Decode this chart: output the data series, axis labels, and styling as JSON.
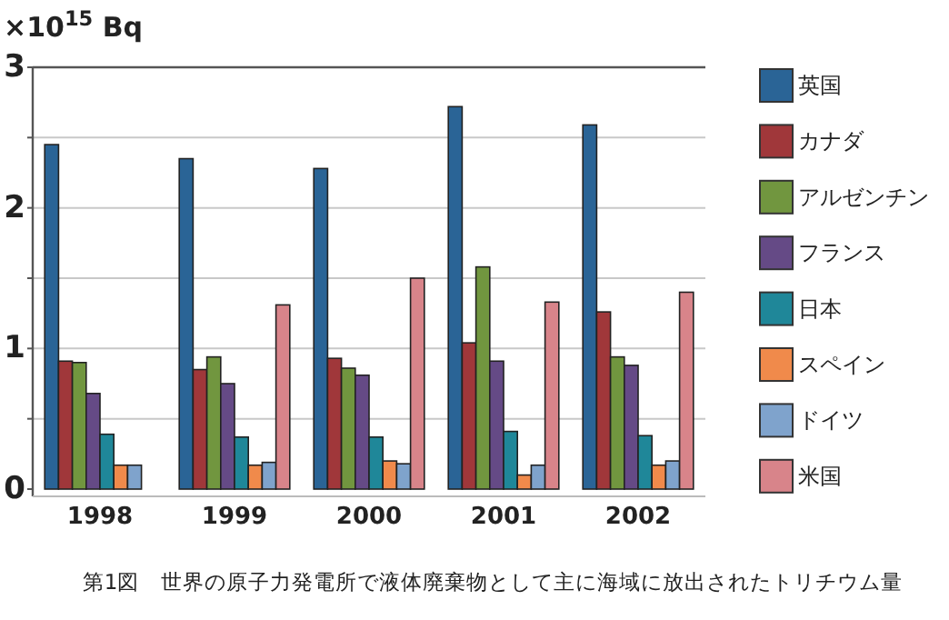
{
  "chart_data": {
    "type": "bar",
    "ylabel": "×10$^{15}$ Bq",
    "annotations": [
      "第1図　世界の原子力発電所で液体廃棄物として主に海域に放出されたトリチウム量"
    ],
    "categories": [
      "1998",
      "1999",
      "2000",
      "2001",
      "2002"
    ],
    "ylim": [
      0,
      3
    ],
    "yticks": [
      0,
      {
        "value": 0.5,
        "label": null
      },
      1,
      {
        "value": 1.5,
        "label": null
      },
      2,
      {
        "value": 2.5,
        "label": null
      },
      3
    ],
    "grid": "y",
    "legend": "right",
    "series": [
      {
        "name": "英国",
        "color": "#2a6496",
        "values": [
          2.45,
          2.35,
          2.28,
          2.72,
          2.59
        ]
      },
      {
        "name": "カナダ",
        "color": "#a0373a",
        "values": [
          0.91,
          0.85,
          0.93,
          1.04,
          1.26
        ]
      },
      {
        "name": "アルゼンチン",
        "color": "#71963f",
        "values": [
          0.9,
          0.94,
          0.86,
          1.58,
          0.94
        ]
      },
      {
        "name": "フランス",
        "color": "#654a86",
        "values": [
          0.68,
          0.75,
          0.81,
          0.91,
          0.88
        ]
      },
      {
        "name": "日本",
        "color": "#1f8799",
        "values": [
          0.39,
          0.37,
          0.37,
          0.41,
          0.38
        ]
      },
      {
        "name": "スペイン",
        "color": "#f08a4b",
        "values": [
          0.17,
          0.17,
          0.2,
          0.1,
          0.17
        ]
      },
      {
        "name": "ドイツ",
        "color": "#7fa3cc",
        "values": [
          0.17,
          0.19,
          0.18,
          0.17,
          0.2
        ]
      },
      {
        "name": "米国",
        "color": "#d8848a",
        "values": [
          null,
          1.31,
          1.5,
          1.33,
          1.4
        ]
      }
    ]
  }
}
